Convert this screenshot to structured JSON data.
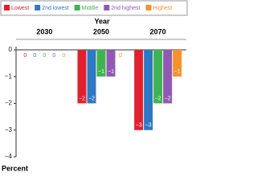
{
  "chart_data": {
    "type": "bar",
    "x_label": "Year",
    "y_label": "Percent",
    "categories": [
      "2030",
      "2050",
      "2070"
    ],
    "series": [
      {
        "name": "Lowest",
        "color": "#e0212d",
        "values": [
          0,
          -2,
          -3
        ],
        "value_labels": [
          "0",
          "−2",
          "−3"
        ]
      },
      {
        "name": "2nd lowest",
        "color": "#2f78c4",
        "values": [
          0,
          -2,
          -3
        ],
        "value_labels": [
          "0",
          "−2",
          "−3"
        ]
      },
      {
        "name": "Middle",
        "color": "#3fb34f",
        "values": [
          0,
          -1,
          -2
        ],
        "value_labels": [
          "0",
          "−1",
          "−2"
        ]
      },
      {
        "name": "2nd highest",
        "color": "#9159b4",
        "values": [
          0,
          -1,
          -2
        ],
        "value_labels": [
          "0",
          "−1",
          "−2"
        ]
      },
      {
        "name": "Highest",
        "color": "#f7922a",
        "values": [
          0,
          0,
          -1
        ],
        "value_labels": [
          "0",
          "0",
          "−1"
        ]
      }
    ],
    "ylim": [
      -4,
      0
    ],
    "yticks": [
      0,
      {
        "value": -1,
        "label": "−1"
      },
      {
        "value": -2,
        "label": "−2"
      },
      {
        "value": -3,
        "label": "−3"
      },
      {
        "value": -4,
        "label": "−4"
      }
    ]
  }
}
